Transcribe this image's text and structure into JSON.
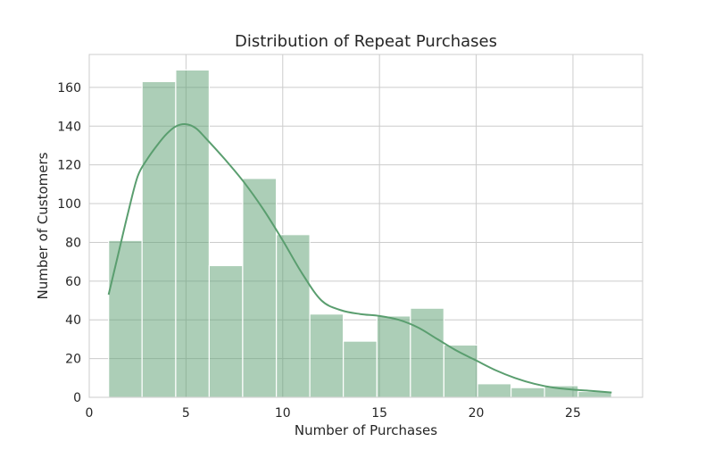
{
  "chart_data": {
    "type": "bar",
    "title": "Distribution of Repeat Purchases",
    "xlabel": "Number of Purchases",
    "ylabel": "Number of Customers",
    "xlim": [
      0,
      28.6
    ],
    "ylim": [
      0,
      177
    ],
    "xticks": [
      0,
      5,
      10,
      15,
      20,
      25
    ],
    "yticks": [
      0,
      20,
      40,
      60,
      80,
      100,
      120,
      140,
      160
    ],
    "grid": true,
    "bar_color": "#5a9e6f",
    "bar_opacity": 0.5,
    "kde_color": "#5a9e6f",
    "bins": [
      {
        "x0": 1.0,
        "x1": 2.73,
        "count": 81
      },
      {
        "x0": 2.73,
        "x1": 4.47,
        "count": 163
      },
      {
        "x0": 4.47,
        "x1": 6.2,
        "count": 169
      },
      {
        "x0": 6.2,
        "x1": 7.93,
        "count": 68
      },
      {
        "x0": 7.93,
        "x1": 9.67,
        "count": 113
      },
      {
        "x0": 9.67,
        "x1": 11.4,
        "count": 84
      },
      {
        "x0": 11.4,
        "x1": 13.13,
        "count": 43
      },
      {
        "x0": 13.13,
        "x1": 14.87,
        "count": 29
      },
      {
        "x0": 14.87,
        "x1": 16.6,
        "count": 42
      },
      {
        "x0": 16.6,
        "x1": 18.33,
        "count": 46
      },
      {
        "x0": 18.33,
        "x1": 20.07,
        "count": 27
      },
      {
        "x0": 20.07,
        "x1": 21.8,
        "count": 7
      },
      {
        "x0": 21.8,
        "x1": 23.53,
        "count": 5
      },
      {
        "x0": 23.53,
        "x1": 25.27,
        "count": 6
      },
      {
        "x0": 25.27,
        "x1": 27.0,
        "count": 3
      }
    ],
    "kde": [
      [
        1.0,
        53
      ],
      [
        1.5,
        74
      ],
      [
        2.0,
        95
      ],
      [
        2.5,
        114
      ],
      [
        3.0,
        123
      ],
      [
        3.5,
        130
      ],
      [
        4.0,
        136
      ],
      [
        4.5,
        140
      ],
      [
        5.0,
        141
      ],
      [
        5.5,
        139
      ],
      [
        6.0,
        134
      ],
      [
        7.0,
        123
      ],
      [
        8.0,
        111
      ],
      [
        9.0,
        97
      ],
      [
        10.0,
        81
      ],
      [
        11.0,
        64
      ],
      [
        12.0,
        50
      ],
      [
        13.0,
        45
      ],
      [
        14.0,
        43
      ],
      [
        15.0,
        42
      ],
      [
        16.0,
        40
      ],
      [
        17.0,
        36
      ],
      [
        18.0,
        30
      ],
      [
        19.0,
        24
      ],
      [
        20.0,
        19
      ],
      [
        21.0,
        14
      ],
      [
        22.0,
        10
      ],
      [
        23.0,
        7
      ],
      [
        24.0,
        5
      ],
      [
        25.0,
        4
      ],
      [
        26.0,
        3.3
      ],
      [
        27.0,
        2.5
      ]
    ]
  }
}
